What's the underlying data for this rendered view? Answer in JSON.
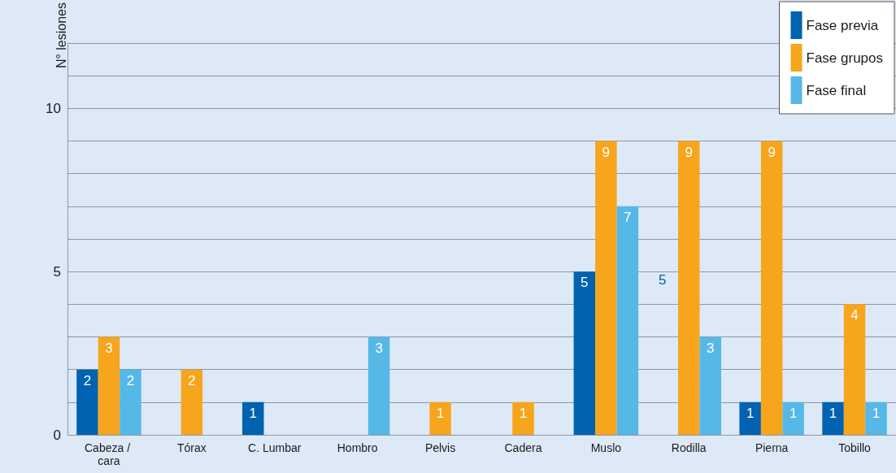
{
  "chart_data": {
    "type": "bar",
    "ylabel": "N° lesiones",
    "categories": [
      "Cabeza / cara",
      "Tórax",
      "C. Lumbar",
      "Hombro",
      "Pelvis",
      "Cadera",
      "Muslo",
      "Rodilla",
      "Pierna",
      "Tobillo"
    ],
    "series": [
      {
        "name": "Fase previa",
        "color": "#0062b0",
        "values": [
          2,
          null,
          1,
          null,
          null,
          null,
          5,
          null,
          1,
          1
        ]
      },
      {
        "name": "Fase grupos",
        "color": "#f7a51c",
        "values": [
          3,
          2,
          null,
          null,
          1,
          1,
          9,
          9,
          9,
          4
        ]
      },
      {
        "name": "Fase final",
        "color": "#56b8e6",
        "values": [
          2,
          null,
          null,
          3,
          null,
          null,
          7,
          3,
          1,
          1
        ]
      }
    ],
    "ylim": [
      0,
      12
    ],
    "yticks": [
      0,
      {
        "value": 1,
        "label": null
      },
      {
        "value": 2,
        "label": null
      },
      {
        "value": 3,
        "label": null
      },
      {
        "value": 4,
        "label": null
      },
      5,
      {
        "value": 6,
        "label": null
      },
      {
        "value": 7,
        "label": null
      },
      {
        "value": 8,
        "label": null
      },
      {
        "value": 9,
        "label": null
      },
      10,
      {
        "value": 11,
        "label": null
      },
      {
        "value": 12,
        "label": null
      }
    ],
    "grid": "y",
    "legend": "top right",
    "data_labels": true,
    "annotations": [
      "5"
    ]
  }
}
